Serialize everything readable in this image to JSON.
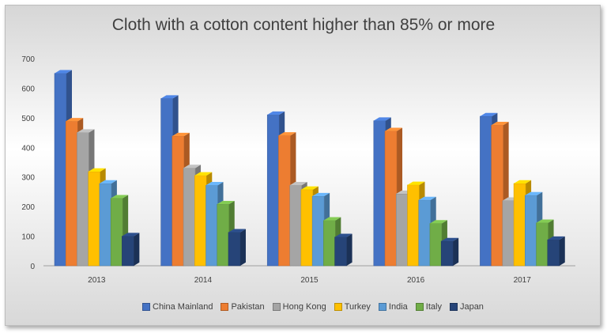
{
  "chart_data": {
    "type": "bar",
    "title": "Cloth with a cotton content higher than 85% or more",
    "categories": [
      "2013",
      "2014",
      "2015",
      "2016",
      "2017"
    ],
    "series": [
      {
        "name": "China Mainland",
        "color": "#4472c4",
        "values": [
          650,
          565,
          510,
          490,
          505
        ]
      },
      {
        "name": "Pakistan",
        "color": "#ed7d31",
        "values": [
          488,
          438,
          440,
          455,
          475
        ]
      },
      {
        "name": "Hong Kong",
        "color": "#a5a5a5",
        "values": [
          450,
          330,
          272,
          243,
          220
        ]
      },
      {
        "name": "Turkey",
        "color": "#ffc000",
        "values": [
          318,
          305,
          257,
          273,
          278
        ]
      },
      {
        "name": "India",
        "color": "#5b9bd5",
        "values": [
          278,
          272,
          235,
          222,
          238
        ]
      },
      {
        "name": "Italy",
        "color": "#70ad47",
        "values": [
          228,
          208,
          153,
          143,
          145
        ]
      },
      {
        "name": "Japan",
        "color": "#264478",
        "values": [
          100,
          113,
          97,
          83,
          88
        ]
      }
    ],
    "yticks": [
      0,
      100,
      200,
      300,
      400,
      500,
      600,
      700
    ],
    "ylim": [
      0,
      700
    ],
    "xlabel": "",
    "ylabel": "",
    "legend_position": "bottom",
    "grid": false
  }
}
